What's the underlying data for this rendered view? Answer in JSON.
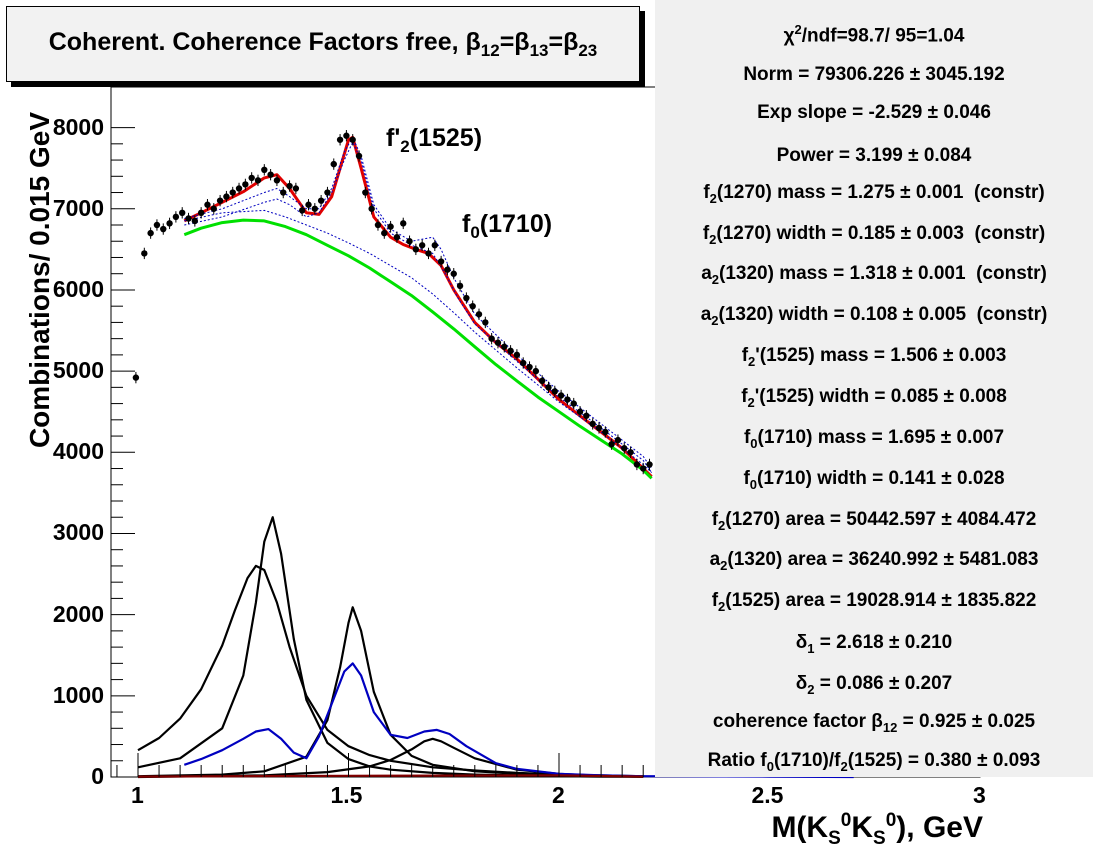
{
  "chart_data": {
    "type": "scatter",
    "title": "Coherent. Coherence Factors free, β12=β13=β23",
    "xlabel": "M(KS0KS0), GeV",
    "ylabel": "Combinations/ 0.015 GeV",
    "xlim": [
      0.92,
      3.0
    ],
    "ylim": [
      0,
      8500
    ],
    "x_ticks": [
      "1",
      "1.5",
      "2",
      "2.5",
      "3"
    ],
    "y_ticks": [
      "0",
      "1000",
      "2000",
      "3000",
      "4000",
      "5000",
      "6000",
      "7000",
      "8000"
    ],
    "annotations": [
      "f'2(1525)",
      "f0(1710)"
    ],
    "data_points": {
      "x": [
        0.995,
        1.015,
        1.03,
        1.045,
        1.06,
        1.075,
        1.09,
        1.105,
        1.12,
        1.135,
        1.15,
        1.165,
        1.18,
        1.195,
        1.21,
        1.225,
        1.24,
        1.255,
        1.27,
        1.285,
        1.3,
        1.315,
        1.33,
        1.345,
        1.36,
        1.375,
        1.39,
        1.405,
        1.42,
        1.435,
        1.45,
        1.465,
        1.48,
        1.495,
        1.51,
        1.525,
        1.54,
        1.555,
        1.57,
        1.585,
        1.6,
        1.615,
        1.63,
        1.645,
        1.66,
        1.675,
        1.69,
        1.705,
        1.72,
        1.735,
        1.75,
        1.765,
        1.78,
        1.795,
        1.81,
        1.825,
        1.84,
        1.855,
        1.87,
        1.885,
        1.9,
        1.915,
        1.93,
        1.945,
        1.96,
        1.975,
        1.99,
        2.005,
        2.02,
        2.035,
        2.05,
        2.065,
        2.08,
        2.095,
        2.11,
        2.125,
        2.14,
        2.155,
        2.17,
        2.185,
        2.2,
        2.215
      ],
      "y": [
        4920,
        6450,
        6700,
        6800,
        6750,
        6820,
        6900,
        6950,
        6880,
        6850,
        6950,
        7050,
        7000,
        7100,
        7150,
        7200,
        7250,
        7300,
        7380,
        7350,
        7480,
        7420,
        7350,
        7200,
        7280,
        7250,
        6980,
        7050,
        7000,
        7100,
        7200,
        7550,
        7850,
        7900,
        7850,
        7650,
        7200,
        7000,
        6800,
        6700,
        6780,
        6650,
        6820,
        6600,
        6500,
        6550,
        6450,
        6550,
        6350,
        6250,
        6200,
        6050,
        5900,
        5800,
        5700,
        5600,
        5400,
        5350,
        5300,
        5250,
        5200,
        5100,
        5050,
        5000,
        4880,
        4800,
        4750,
        4700,
        4650,
        4600,
        4500,
        4450,
        4350,
        4300,
        4250,
        4100,
        4150,
        4050,
        4000,
        3850,
        3800,
        3850
      ],
      "errors": 70
    },
    "series": [
      {
        "name": "",
        "color": "#e00000",
        "x": [
          1.11,
          1.15,
          1.2,
          1.25,
          1.3,
          1.33,
          1.36,
          1.4,
          1.43,
          1.46,
          1.48,
          1.5,
          1.51,
          1.53,
          1.56,
          1.6,
          1.63,
          1.66,
          1.69,
          1.72,
          1.75,
          1.8,
          1.85,
          1.9,
          1.95,
          2.0,
          2.05,
          2.1,
          2.15,
          2.2,
          2.22
        ],
        "y": [
          6850,
          6950,
          7080,
          7210,
          7380,
          7420,
          7250,
          6950,
          6930,
          7150,
          7500,
          7850,
          7880,
          7500,
          6900,
          6650,
          6560,
          6500,
          6450,
          6300,
          6000,
          5600,
          5350,
          5150,
          4900,
          4650,
          4450,
          4250,
          4050,
          3800,
          3700
        ]
      },
      {
        "name": "",
        "color": "#00e000",
        "x": [
          1.11,
          1.15,
          1.2,
          1.25,
          1.3,
          1.35,
          1.4,
          1.45,
          1.5,
          1.55,
          1.6,
          1.65,
          1.7,
          1.75,
          1.8,
          1.85,
          1.9,
          1.95,
          2.0,
          2.05,
          2.1,
          2.15,
          2.2,
          2.22
        ],
        "y": [
          6680,
          6760,
          6830,
          6860,
          6850,
          6780,
          6680,
          6550,
          6420,
          6270,
          6100,
          5930,
          5730,
          5520,
          5300,
          5080,
          4880,
          4680,
          4500,
          4320,
          4150,
          3980,
          3780,
          3680
        ]
      },
      {
        "name": "",
        "color": "#0000c0",
        "dashed": true,
        "x": [
          1.11,
          1.2,
          1.3,
          1.35,
          1.4,
          1.45,
          1.5,
          1.55,
          1.6,
          1.65,
          1.7,
          1.75,
          1.8,
          1.9,
          2.0,
          2.1,
          2.2,
          2.22
        ],
        "y": [
          6850,
          6950,
          6980,
          6900,
          6800,
          6700,
          6580,
          6450,
          6300,
          6150,
          5950,
          5720,
          5480,
          5040,
          4620,
          4250,
          3850,
          3750
        ]
      },
      {
        "name": "",
        "color": "#0000c0",
        "dashed": true,
        "x": [
          1.11,
          1.2,
          1.3,
          1.33,
          1.36,
          1.4,
          1.43,
          1.46,
          1.49,
          1.51,
          1.53,
          1.56,
          1.6,
          1.65,
          1.7,
          1.72,
          1.75,
          1.8,
          1.9,
          2.0,
          2.1,
          2.2,
          2.22
        ],
        "y": [
          6880,
          7000,
          7200,
          7250,
          7150,
          7000,
          7000,
          7250,
          7700,
          7880,
          7650,
          7050,
          6750,
          6600,
          6650,
          6500,
          6150,
          5700,
          5200,
          4750,
          4350,
          3950,
          3800
        ]
      },
      {
        "name": "",
        "color": "#0000c0",
        "dashed": true,
        "x": [
          1.11,
          1.2,
          1.3,
          1.33,
          1.36,
          1.4,
          1.43,
          1.46,
          1.49,
          1.51,
          1.53,
          1.56,
          1.6,
          1.65,
          1.7,
          1.73,
          1.76,
          1.8,
          1.9,
          2.0,
          2.1,
          2.2,
          2.22
        ],
        "y": [
          6800,
          6900,
          7080,
          7120,
          7050,
          6900,
          6950,
          7200,
          7600,
          7820,
          7600,
          7000,
          6700,
          6550,
          6450,
          6200,
          5900,
          5580,
          5120,
          4680,
          4300,
          3900,
          3750
        ]
      },
      {
        "name": "",
        "color": "#000000",
        "x": [
          1.0,
          1.05,
          1.1,
          1.15,
          1.2,
          1.23,
          1.26,
          1.28,
          1.3,
          1.33,
          1.36,
          1.4,
          1.45,
          1.5,
          1.55,
          1.6,
          1.7,
          1.8,
          1.9,
          2.0,
          2.1,
          2.2
        ],
        "y": [
          330,
          480,
          720,
          1080,
          1620,
          2050,
          2450,
          2600,
          2550,
          2150,
          1600,
          1000,
          580,
          380,
          270,
          200,
          120,
          80,
          50,
          30,
          20,
          10
        ]
      },
      {
        "name": "",
        "color": "#000000",
        "x": [
          1.0,
          1.1,
          1.2,
          1.25,
          1.28,
          1.3,
          1.32,
          1.34,
          1.37,
          1.4,
          1.45,
          1.5,
          1.55,
          1.6,
          1.7,
          1.8,
          1.9,
          2.0,
          2.1,
          2.2
        ],
        "y": [
          120,
          230,
          600,
          1250,
          2150,
          2900,
          3200,
          2750,
          1700,
          950,
          420,
          220,
          130,
          90,
          50,
          30,
          20,
          10,
          5,
          2
        ]
      },
      {
        "name": "",
        "color": "#000000",
        "x": [
          1.0,
          1.2,
          1.3,
          1.4,
          1.45,
          1.48,
          1.5,
          1.51,
          1.53,
          1.56,
          1.6,
          1.65,
          1.7,
          1.8,
          1.9,
          2.0,
          2.1,
          2.2
        ],
        "y": [
          10,
          30,
          70,
          250,
          700,
          1350,
          1900,
          2090,
          1800,
          1050,
          520,
          260,
          150,
          70,
          40,
          20,
          10,
          5
        ]
      },
      {
        "name": "",
        "color": "#000000",
        "x": [
          1.0,
          1.3,
          1.45,
          1.55,
          1.6,
          1.65,
          1.68,
          1.7,
          1.72,
          1.75,
          1.8,
          1.9,
          2.0,
          2.1,
          2.2
        ],
        "y": [
          0,
          20,
          60,
          130,
          210,
          340,
          440,
          470,
          440,
          360,
          230,
          90,
          40,
          15,
          5
        ]
      },
      {
        "name": "",
        "color": "#0000c0",
        "x": [
          1.11,
          1.15,
          1.2,
          1.25,
          1.28,
          1.31,
          1.34,
          1.37,
          1.4,
          1.43,
          1.46,
          1.49,
          1.51,
          1.53,
          1.56,
          1.6,
          1.64,
          1.68,
          1.71,
          1.74,
          1.78,
          1.85,
          1.9,
          2.0,
          2.1,
          2.2,
          2.5,
          2.7
        ],
        "y": [
          150,
          220,
          330,
          470,
          560,
          590,
          470,
          300,
          230,
          500,
          900,
          1300,
          1400,
          1250,
          800,
          520,
          480,
          560,
          580,
          530,
          380,
          170,
          100,
          40,
          20,
          10,
          5,
          0
        ]
      },
      {
        "name": "",
        "color": "#800000",
        "x": [
          1.0,
          1.5,
          2.0,
          2.2
        ],
        "y": [
          5,
          15,
          20,
          5
        ]
      }
    ]
  },
  "title_parts": {
    "main": "Coherent. Coherence Factors free, ",
    "b12": "12",
    "b13": "13",
    "b23": "23"
  },
  "stats": {
    "chi": "χ2/ndf=98.7/ 95=1.04",
    "norm": "Norm = 79306.226 ± 3045.192",
    "slope": "Exp slope = -2.529 ± 0.046",
    "power": "Power = 3.199 ± 0.084",
    "f2_mass": "f2(1270) mass = 1.275 ± 0.001  (constr)",
    "f2_width": "f2(1270) width = 0.185 ± 0.003  (constr)",
    "a2_mass": "a2(1320) mass = 1.318 ± 0.001  (constr)",
    "a2_width": "a2(1320) width = 0.108 ± 0.005  (constr)",
    "f2p_mass": "f2'(1525) mass = 1.506 ± 0.003",
    "f2p_width": "f2'(1525) width = 0.085 ± 0.008",
    "f0_mass": "f0(1710) mass = 1.695 ± 0.007",
    "f0_width": "f0(1710) width = 0.141 ± 0.028",
    "f2_area": "f2(1270) area = 50442.597 ± 4084.472",
    "a2_area": "a2(1320) area = 36240.992 ± 5481.083",
    "f2p_area": "f2(1525) area = 19028.914 ± 1835.822",
    "d1": "δ1 = 2.618 ± 0.210",
    "d2": "δ2 = 0.086 ± 0.207",
    "coh": "coherence factor β12 = 0.925 ± 0.025",
    "ratio": "Ratio f0(1710)/f2(1525) = 0.380 ± 0.093"
  }
}
